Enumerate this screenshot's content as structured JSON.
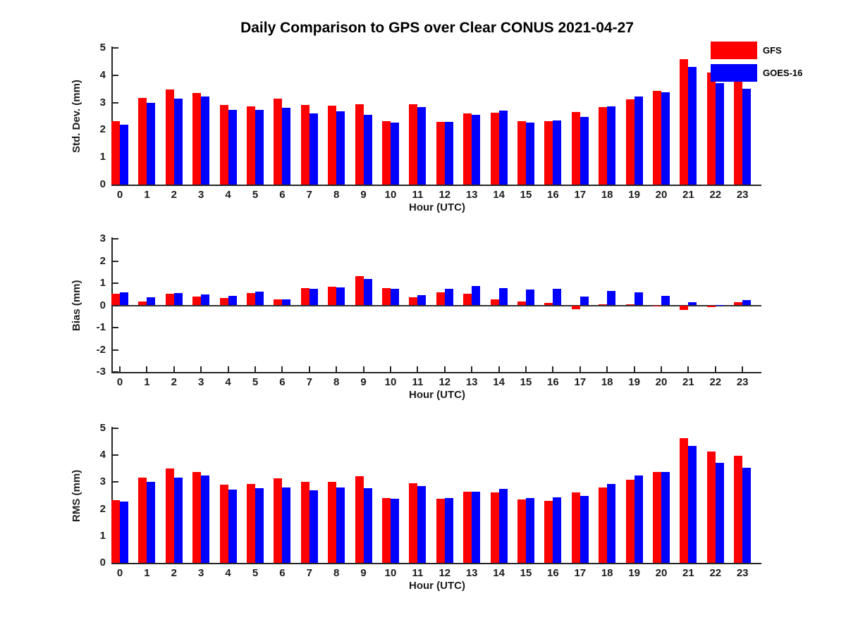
{
  "title": "Daily Comparison to GPS over Clear CONUS 2021-04-27",
  "legend": {
    "entries": [
      {
        "label": "GFS",
        "color": "#ff0000"
      },
      {
        "label": "GOES-16",
        "color": "#0000ff"
      }
    ]
  },
  "colors": {
    "gfs": "#ff0000",
    "goes16": "#0000ff",
    "axis": "#262626"
  },
  "chart_data": [
    {
      "type": "bar",
      "panel": "std-dev",
      "ylabel": "Std. Dev. (mm)",
      "xlabel": "Hour (UTC)",
      "ylim": [
        0,
        5
      ],
      "yticks": [
        0,
        1,
        2,
        3,
        4,
        5
      ],
      "grid": false,
      "categories": [
        "0",
        "1",
        "2",
        "3",
        "4",
        "5",
        "6",
        "7",
        "8",
        "9",
        "10",
        "11",
        "12",
        "13",
        "14",
        "15",
        "16",
        "17",
        "18",
        "19",
        "20",
        "21",
        "22",
        "23"
      ],
      "series": [
        {
          "name": "GFS",
          "color": "#ff0000",
          "values": [
            2.32,
            3.17,
            3.47,
            3.35,
            2.9,
            2.87,
            3.15,
            2.92,
            2.88,
            2.95,
            2.32,
            2.95,
            2.29,
            2.6,
            2.62,
            2.33,
            2.32,
            2.65,
            2.83,
            3.12,
            3.42,
            4.6,
            4.1,
            3.9
          ]
        },
        {
          "name": "GOES-16",
          "color": "#0000ff",
          "values": [
            2.2,
            3.0,
            3.15,
            3.23,
            2.72,
            2.72,
            2.8,
            2.6,
            2.68,
            2.55,
            2.27,
            2.83,
            2.29,
            2.55,
            2.7,
            2.28,
            2.35,
            2.47,
            2.87,
            3.22,
            3.37,
            4.3,
            3.7,
            3.5
          ]
        }
      ]
    },
    {
      "type": "bar",
      "panel": "bias",
      "ylabel": "Bias (mm)",
      "xlabel": "Hour (UTC)",
      "ylim": [
        -3,
        3
      ],
      "yticks": [
        -3,
        -2,
        -1,
        0,
        1,
        2,
        3
      ],
      "grid": false,
      "categories": [
        "0",
        "1",
        "2",
        "3",
        "4",
        "5",
        "6",
        "7",
        "8",
        "9",
        "10",
        "11",
        "12",
        "13",
        "14",
        "15",
        "16",
        "17",
        "18",
        "19",
        "20",
        "21",
        "22",
        "23"
      ],
      "series": [
        {
          "name": "GFS",
          "color": "#ff0000",
          "values": [
            0.53,
            0.17,
            0.52,
            0.4,
            0.32,
            0.55,
            0.28,
            0.78,
            0.85,
            1.33,
            0.77,
            0.38,
            0.6,
            0.53,
            0.28,
            0.18,
            0.1,
            -0.16,
            0.05,
            0.05,
            -0.03,
            -0.22,
            -0.07,
            0.15
          ]
        },
        {
          "name": "GOES-16",
          "color": "#0000ff",
          "values": [
            0.6,
            0.35,
            0.57,
            0.48,
            0.42,
            0.63,
            0.26,
            0.76,
            0.82,
            1.18,
            0.76,
            0.47,
            0.75,
            0.86,
            0.77,
            0.73,
            0.76,
            0.41,
            0.65,
            0.6,
            0.44,
            0.13,
            0.02,
            0.23
          ]
        }
      ]
    },
    {
      "type": "bar",
      "panel": "rms",
      "ylabel": "RMS (mm)",
      "xlabel": "Hour (UTC)",
      "ylim": [
        0,
        5
      ],
      "yticks": [
        0,
        1,
        2,
        3,
        4,
        5
      ],
      "grid": false,
      "categories": [
        "0",
        "1",
        "2",
        "3",
        "4",
        "5",
        "6",
        "7",
        "8",
        "9",
        "10",
        "11",
        "12",
        "13",
        "14",
        "15",
        "16",
        "17",
        "18",
        "19",
        "20",
        "21",
        "22",
        "23"
      ],
      "series": [
        {
          "name": "GFS",
          "color": "#ff0000",
          "values": [
            2.33,
            3.18,
            3.5,
            3.37,
            2.9,
            2.92,
            3.15,
            3.0,
            3.0,
            3.22,
            2.42,
            2.95,
            2.37,
            2.65,
            2.63,
            2.36,
            2.3,
            2.62,
            2.8,
            3.08,
            3.38,
            4.63,
            4.14,
            3.97
          ]
        },
        {
          "name": "GOES-16",
          "color": "#0000ff",
          "values": [
            2.28,
            3.0,
            3.18,
            3.25,
            2.72,
            2.77,
            2.8,
            2.7,
            2.8,
            2.78,
            2.37,
            2.85,
            2.4,
            2.65,
            2.75,
            2.42,
            2.43,
            2.5,
            2.92,
            3.25,
            3.38,
            4.35,
            3.72,
            3.53
          ]
        }
      ]
    }
  ]
}
